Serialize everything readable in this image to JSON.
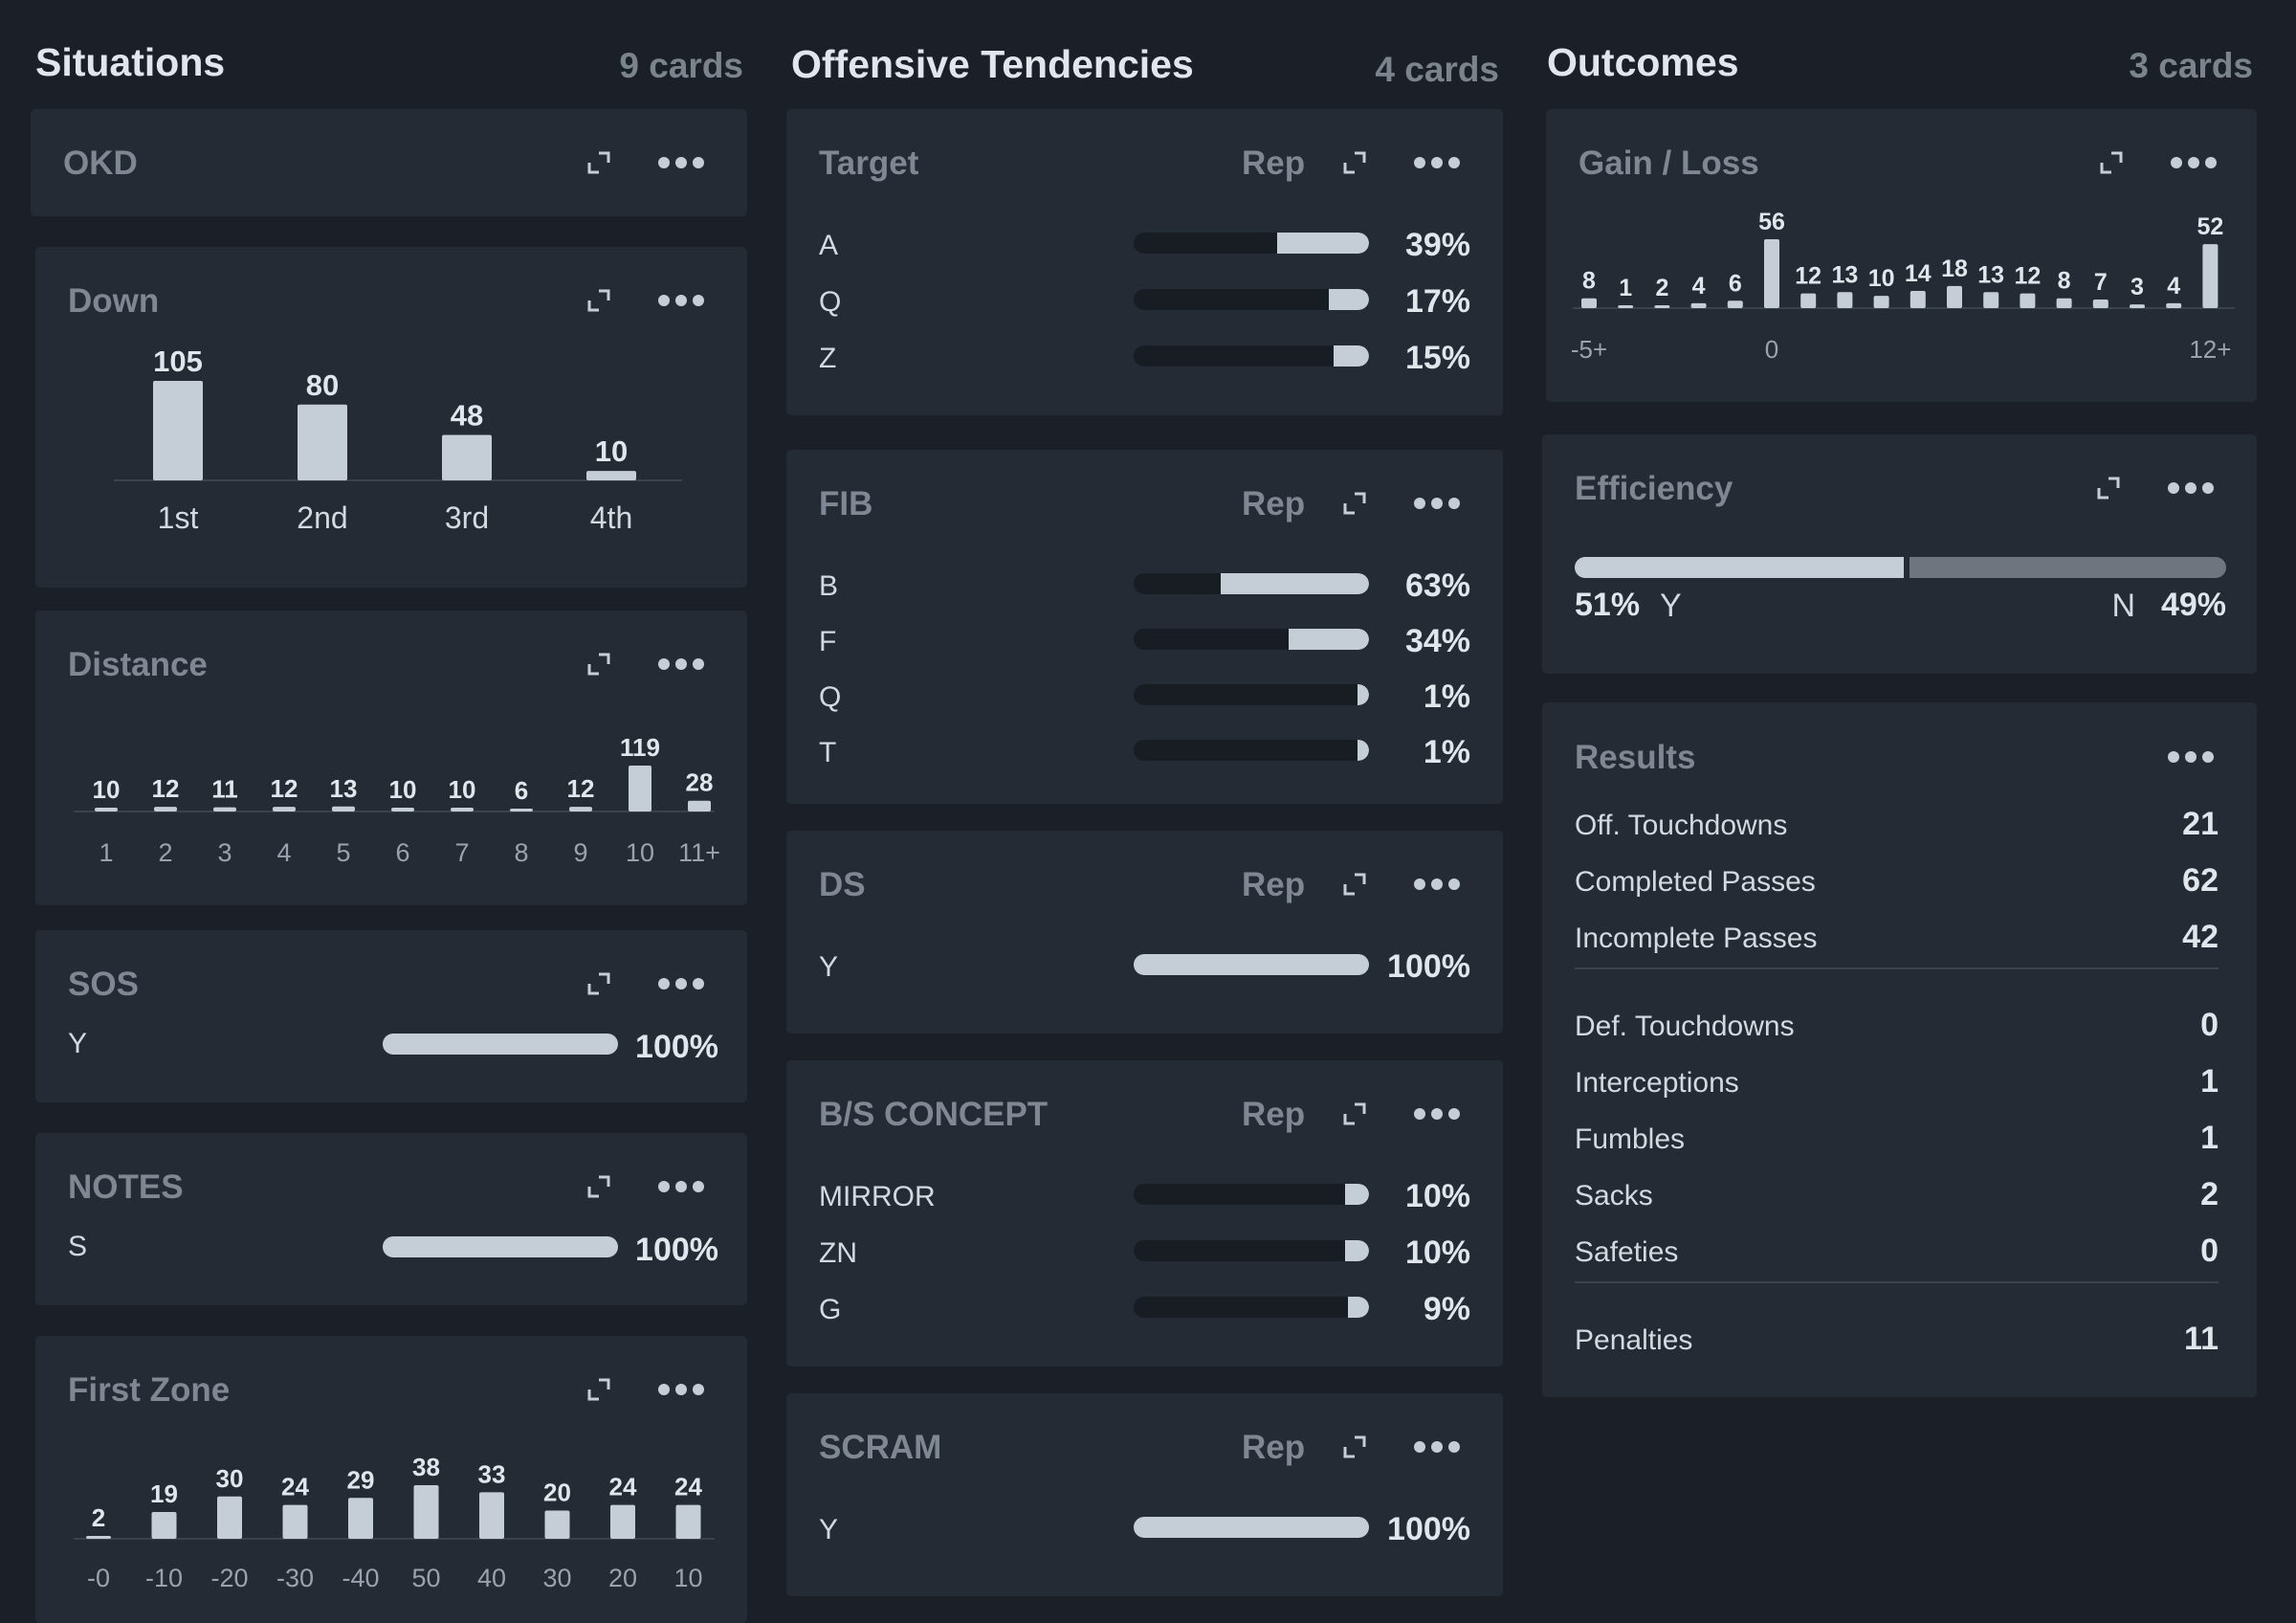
{
  "columns": {
    "situations": {
      "title": "Situations",
      "count": "9 cards"
    },
    "offense": {
      "title": "Offensive Tendencies",
      "count": "4 cards"
    },
    "outcomes": {
      "title": "Outcomes",
      "count": "3 cards"
    }
  },
  "cards": {
    "okd": {
      "title": "OKD"
    },
    "down": {
      "title": "Down"
    },
    "distance": {
      "title": "Distance"
    },
    "sos": {
      "title": "SOS",
      "rows": [
        {
          "label": "Y",
          "pct": "100%",
          "value": 1.0
        }
      ]
    },
    "notes": {
      "title": "NOTES",
      "rows": [
        {
          "label": "S",
          "pct": "100%",
          "value": 1.0
        }
      ]
    },
    "first_zone": {
      "title": "First Zone"
    },
    "target": {
      "title": "Target",
      "rep": "Rep",
      "rows": [
        {
          "label": "A",
          "pct": "39%",
          "value": 0.39
        },
        {
          "label": "Q",
          "pct": "17%",
          "value": 0.17
        },
        {
          "label": "Z",
          "pct": "15%",
          "value": 0.15
        }
      ]
    },
    "fib": {
      "title": "FIB",
      "rep": "Rep",
      "rows": [
        {
          "label": "B",
          "pct": "63%",
          "value": 0.63
        },
        {
          "label": "F",
          "pct": "34%",
          "value": 0.34
        },
        {
          "label": "Q",
          "pct": "1%",
          "value": 0.01
        },
        {
          "label": "T",
          "pct": "1%",
          "value": 0.01
        }
      ]
    },
    "ds": {
      "title": "DS",
      "rep": "Rep",
      "rows": [
        {
          "label": "Y",
          "pct": "100%",
          "value": 1.0
        }
      ]
    },
    "bs_concept": {
      "title": "B/S CONCEPT",
      "rep": "Rep",
      "rows": [
        {
          "label": "MIRROR",
          "pct": "10%",
          "value": 0.1
        },
        {
          "label": "ZN",
          "pct": "10%",
          "value": 0.1
        },
        {
          "label": "G",
          "pct": "9%",
          "value": 0.09
        }
      ]
    },
    "scram": {
      "title": "SCRAM",
      "rep": "Rep",
      "rows": [
        {
          "label": "Y",
          "pct": "100%",
          "value": 1.0
        }
      ]
    },
    "gain_loss": {
      "title": "Gain / Loss"
    },
    "efficiency": {
      "title": "Efficiency",
      "yes_pct": "51%",
      "yes_label": "Y",
      "no_label": "N",
      "no_pct": "49%",
      "yes_value": 0.51
    },
    "results": {
      "title": "Results",
      "groups": [
        [
          {
            "label": "Off. Touchdowns",
            "value": "21"
          },
          {
            "label": "Completed Passes",
            "value": "62"
          },
          {
            "label": "Incomplete Passes",
            "value": "42"
          }
        ],
        [
          {
            "label": "Def. Touchdowns",
            "value": "0"
          },
          {
            "label": "Interceptions",
            "value": "1"
          },
          {
            "label": "Fumbles",
            "value": "1"
          },
          {
            "label": "Sacks",
            "value": "2"
          },
          {
            "label": "Safeties",
            "value": "0"
          }
        ],
        [
          {
            "label": "Penalties",
            "value": "11"
          }
        ]
      ]
    }
  },
  "chart_data": [
    {
      "type": "bar",
      "title": "Down",
      "categories": [
        "1st",
        "2nd",
        "3rd",
        "4th"
      ],
      "values": [
        105,
        80,
        48,
        10
      ]
    },
    {
      "type": "bar",
      "title": "Distance",
      "categories": [
        "1",
        "2",
        "3",
        "4",
        "5",
        "6",
        "7",
        "8",
        "9",
        "10",
        "11+"
      ],
      "values": [
        10,
        12,
        11,
        12,
        13,
        10,
        10,
        6,
        12,
        119,
        28
      ]
    },
    {
      "type": "bar",
      "title": "First Zone",
      "categories": [
        "-0",
        "-10",
        "-20",
        "-30",
        "-40",
        "50",
        "40",
        "30",
        "20",
        "10"
      ],
      "values": [
        2,
        19,
        30,
        24,
        29,
        38,
        33,
        20,
        24,
        24
      ]
    },
    {
      "type": "bar",
      "title": "Gain / Loss",
      "categories": [
        "-5+",
        "-4",
        "-3",
        "-2",
        "-1",
        "0",
        "1",
        "2",
        "3",
        "4",
        "5",
        "6",
        "7",
        "8",
        "9",
        "10",
        "11",
        "12+"
      ],
      "tick_labels": [
        "-5+",
        "0",
        "12+"
      ],
      "values": [
        8,
        1,
        2,
        4,
        6,
        56,
        12,
        13,
        10,
        14,
        18,
        13,
        12,
        8,
        7,
        3,
        4,
        52
      ]
    }
  ],
  "icons": {
    "expand": "expand-icon",
    "more": "more-icon"
  },
  "colors": {
    "background": "#1b2028",
    "card": "#242b35",
    "bar": "#c5cdd6",
    "track": "#181c23",
    "muted_bar": "#6e757e"
  }
}
